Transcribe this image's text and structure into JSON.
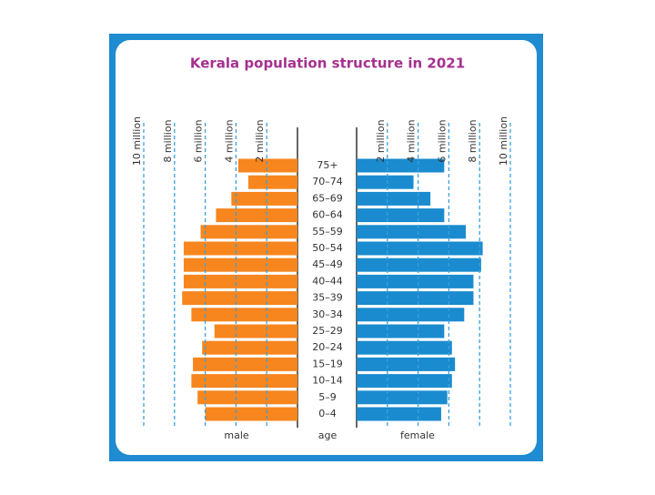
{
  "chart_data": {
    "type": "pyramid",
    "title": "Kerala population structure in 2021",
    "categories": [
      "0–4",
      "5–9",
      "10–14",
      "15–19",
      "20–24",
      "25–29",
      "30–34",
      "35–39",
      "40–44",
      "45–49",
      "50–54",
      "55–59",
      "60–64",
      "65–69",
      "70–74",
      "75+"
    ],
    "series": [
      {
        "name": "male",
        "color": "#f7861e",
        "values": [
          6.0,
          6.5,
          6.9,
          6.8,
          6.2,
          5.4,
          6.9,
          7.5,
          7.4,
          7.4,
          7.4,
          6.3,
          5.3,
          4.3,
          3.2,
          3.85
        ]
      },
      {
        "name": "female",
        "color": "#1a8bcf",
        "values": [
          5.5,
          5.9,
          6.2,
          6.4,
          6.2,
          5.7,
          7.0,
          7.6,
          7.6,
          8.1,
          8.2,
          7.1,
          5.7,
          4.8,
          3.7,
          5.7
        ]
      }
    ],
    "axis_label": "age",
    "xlim": [
      0,
      10
    ],
    "xticks": [
      {
        "value": 2,
        "label": "2 million"
      },
      {
        "value": 4,
        "label": "4 million"
      },
      {
        "value": 6,
        "label": "6 million"
      },
      {
        "value": 8,
        "label": "8 million"
      },
      {
        "value": 10,
        "label": "10 million"
      }
    ],
    "grid": true
  }
}
